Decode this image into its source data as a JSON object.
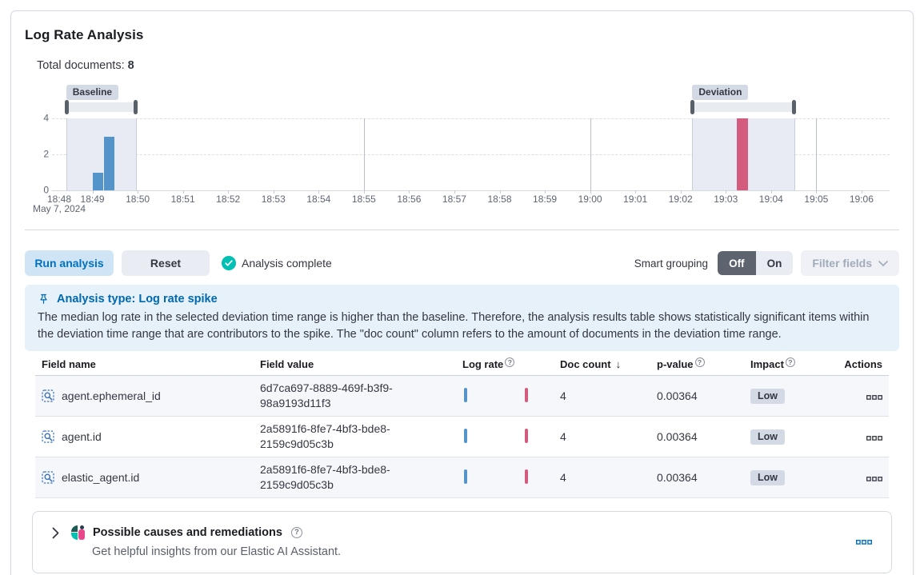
{
  "panel": {
    "title": "Log Rate Analysis",
    "total_documents_label": "Total documents:",
    "total_documents_value": "8"
  },
  "chart_data": {
    "type": "bar",
    "x_tick_labels": [
      "18:48",
      "18:49",
      "18:50",
      "18:51",
      "18:52",
      "18:53",
      "18:54",
      "18:55",
      "18:56",
      "18:57",
      "18:58",
      "18:59",
      "19:00",
      "19:01",
      "19:02",
      "19:03",
      "19:04",
      "19:05",
      "19:06"
    ],
    "x_date_label": "May 7, 2024",
    "y_ticks": [
      0,
      2,
      4
    ],
    "ylim": [
      0,
      4
    ],
    "major_gridline_labels": [
      "18:55",
      "19:00",
      "19:05"
    ],
    "bucket_minutes": 0.25,
    "bars": [
      {
        "start": "18:49:00",
        "minute_offset": 1.0,
        "count": 1,
        "series": "baseline"
      },
      {
        "start": "18:49:15",
        "minute_offset": 1.25,
        "count": 3,
        "series": "baseline"
      },
      {
        "start": "19:03:15",
        "minute_offset": 15.25,
        "count": 4,
        "series": "deviation"
      }
    ],
    "windows": {
      "baseline": {
        "label": "Baseline",
        "start_minute_offset": 0.42,
        "end_minute_offset": 1.96
      },
      "deviation": {
        "label": "Deviation",
        "start_minute_offset": 14.26,
        "end_minute_offset": 16.52
      }
    },
    "colors": {
      "baseline_bar": "#5494cb",
      "deviation_bar": "#d35c7e",
      "window_fill": "#e9ebf4"
    }
  },
  "toolbar": {
    "run_analysis_label": "Run analysis",
    "reset_label": "Reset",
    "status_label": "Analysis complete",
    "smart_grouping_label": "Smart grouping",
    "group_off_label": "Off",
    "group_on_label": "On",
    "filter_fields_label": "Filter fields"
  },
  "callout": {
    "title": "Analysis type: Log rate spike",
    "body": "The median log rate in the selected deviation time range is higher than the baseline. Therefore, the analysis results table shows statistically significant items within the deviation time range that are contributors to the spike. The \"doc count\" column refers to the amount of documents in the deviation time range."
  },
  "table": {
    "columns": {
      "field_name": "Field name",
      "field_value": "Field value",
      "log_rate": "Log rate",
      "doc_count": "Doc count",
      "p_value": "p-value",
      "impact": "Impact",
      "actions": "Actions"
    },
    "sorted_column": "doc_count",
    "rows": [
      {
        "field_name": "agent.ephemeral_id",
        "field_value": "6d7ca697-8889-469f-b3f9-98a9193d11f3",
        "doc_count": "4",
        "p_value": "0.00364",
        "impact": "Low"
      },
      {
        "field_name": "agent.id",
        "field_value": "2a5891f6-8fe7-4bf3-bde8-2159c9d05c3b",
        "doc_count": "4",
        "p_value": "0.00364",
        "impact": "Low"
      },
      {
        "field_name": "elastic_agent.id",
        "field_value": "2a5891f6-8fe7-4bf3-bde8-2159c9d05c3b",
        "doc_count": "4",
        "p_value": "0.00364",
        "impact": "Low"
      }
    ]
  },
  "footer": {
    "title": "Possible causes and remediations",
    "subtitle": "Get helpful insights from our Elastic AI Assistant."
  },
  "colors": {
    "accent_primary": "#0071c2",
    "success": "#00bfb3"
  }
}
